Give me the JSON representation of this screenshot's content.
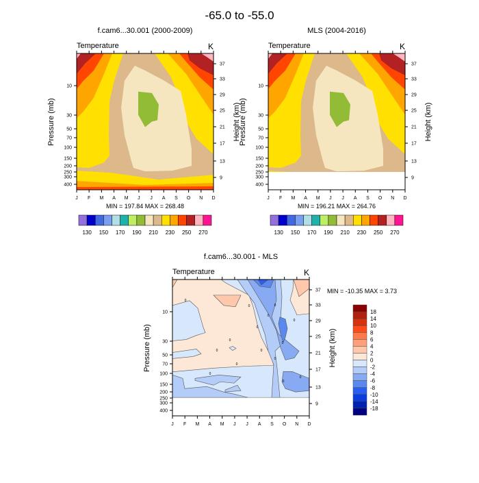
{
  "title": "-65.0 to -55.0",
  "chart_data": [
    {
      "type": "heatmap",
      "title": "f.cam6...30.001 (2000-2009)",
      "left_string": "Temperature",
      "right_string": "K",
      "ylabel": "Pressure (mb)",
      "ylabel_right": "Height (km)",
      "x_ticks": [
        "J",
        "F",
        "M",
        "A",
        "M",
        "J",
        "J",
        "A",
        "S",
        "O",
        "N",
        "D"
      ],
      "y_ticks": [
        "10",
        "30",
        "50",
        "70",
        "100",
        "150",
        "200",
        "250",
        "300",
        "400"
      ],
      "y_ticks_right": [
        "37",
        "33",
        "29",
        "25",
        "21",
        "17",
        "13",
        "9"
      ],
      "y_scale": "log, reversed",
      "min": 197.84,
      "max": 268.48,
      "minmax_text": "MIN = 197.84  MAX = 268.48",
      "colorbar": {
        "orientation": "horizontal",
        "labels": [
          "130",
          "150",
          "170",
          "190",
          "210",
          "230",
          "250",
          "270"
        ],
        "colors": [
          "#9370db",
          "#0000cd",
          "#4169e1",
          "#7b9ff0",
          "#b0e0e6",
          "#20b2aa",
          "#bdee63",
          "#93bc36",
          "#f5e6c0",
          "#dcb88a",
          "#ffe000",
          "#ffa500",
          "#ff4500",
          "#b22222",
          "#ffb6c1",
          "#ff1493"
        ]
      }
    },
    {
      "type": "heatmap",
      "title": "MLS (2004-2016)",
      "left_string": "Temperature",
      "right_string": "K",
      "ylabel": "Pressure (mb)",
      "ylabel_right": "Height (km)",
      "x_ticks": [
        "J",
        "F",
        "M",
        "A",
        "M",
        "J",
        "J",
        "A",
        "S",
        "O",
        "N",
        "D"
      ],
      "y_ticks": [
        "10",
        "30",
        "50",
        "70",
        "100",
        "150",
        "200",
        "250",
        "300",
        "400"
      ],
      "y_ticks_right": [
        "37",
        "33",
        "29",
        "25",
        "21",
        "17",
        "13",
        "9"
      ],
      "y_scale": "log, reversed",
      "min": 196.21,
      "max": 264.76,
      "minmax_text": "MIN = 196.21  MAX = 264.76",
      "colorbar": {
        "orientation": "horizontal",
        "labels": [
          "130",
          "150",
          "170",
          "190",
          "210",
          "230",
          "250",
          "270"
        ],
        "colors": [
          "#9370db",
          "#0000cd",
          "#4169e1",
          "#7b9ff0",
          "#b0e0e6",
          "#20b2aa",
          "#bdee63",
          "#93bc36",
          "#f5e6c0",
          "#dcb88a",
          "#ffe000",
          "#ffa500",
          "#ff4500",
          "#b22222",
          "#ffb6c1",
          "#ff1493"
        ]
      }
    },
    {
      "type": "heatmap",
      "title": "f.cam6...30.001 - MLS",
      "left_string": "Temperature",
      "right_string": "K",
      "ylabel": "Pressure (mb)",
      "ylabel_right": "Height (km)",
      "x_ticks": [
        "J",
        "F",
        "M",
        "A",
        "M",
        "J",
        "J",
        "A",
        "S",
        "O",
        "N",
        "D"
      ],
      "y_ticks": [
        "10",
        "30",
        "50",
        "70",
        "100",
        "150",
        "200",
        "250",
        "300",
        "400"
      ],
      "y_ticks_right": [
        "37",
        "33",
        "29",
        "25",
        "21",
        "17",
        "13",
        "9"
      ],
      "y_scale": "log, reversed",
      "min": -10.35,
      "max": 3.73,
      "minmax_text": "MIN = -10.35  MAX =   3.73",
      "contour_label": "0",
      "colorbar": {
        "orientation": "vertical",
        "labels": [
          "18",
          "14",
          "10",
          "8",
          "6",
          "4",
          "2",
          "0",
          "-2",
          "-4",
          "-6",
          "-8",
          "-10",
          "-14",
          "-18"
        ],
        "colors": [
          "#8b0000",
          "#b22010",
          "#d8320c",
          "#ff4a1a",
          "#ff7a4a",
          "#ffa07a",
          "#ffc8aa",
          "#fde8d8",
          "#d8e8fc",
          "#b4ccf8",
          "#88aaf2",
          "#5a88ee",
          "#2a5ef0",
          "#0a3ce0",
          "#0022b0",
          "#000080"
        ]
      }
    }
  ]
}
